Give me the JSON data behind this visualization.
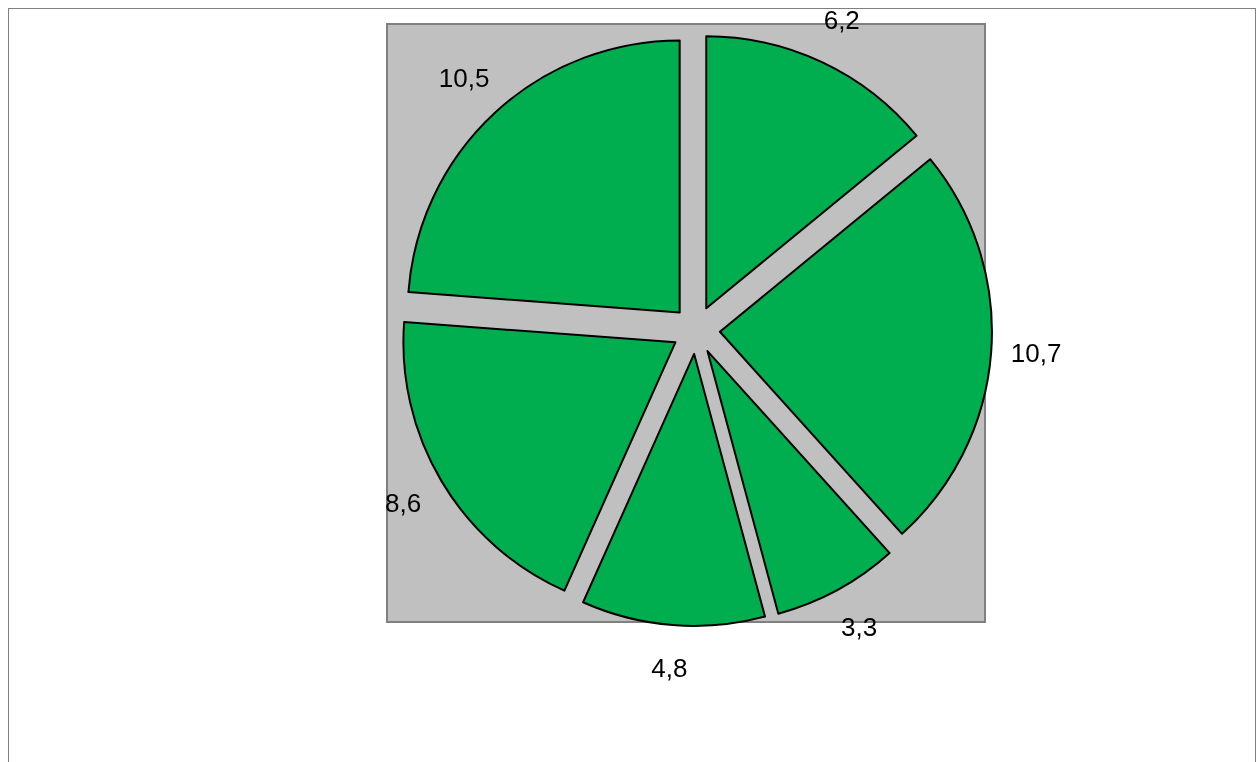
{
  "chart_data": {
    "type": "pie",
    "categories": [
      null,
      null,
      null,
      null,
      null,
      null
    ],
    "values": [
      6.2,
      10.7,
      3.3,
      4.8,
      8.6,
      10.5
    ],
    "colors": [
      "#00ae4f",
      "#00ae4f",
      "#00ae4f",
      "#00ae4f",
      "#00ae4f",
      "#00ae4f"
    ],
    "value_labels": [
      "6,2",
      "10,7",
      "3,3",
      "4,8",
      "8,6",
      "10,5"
    ]
  }
}
